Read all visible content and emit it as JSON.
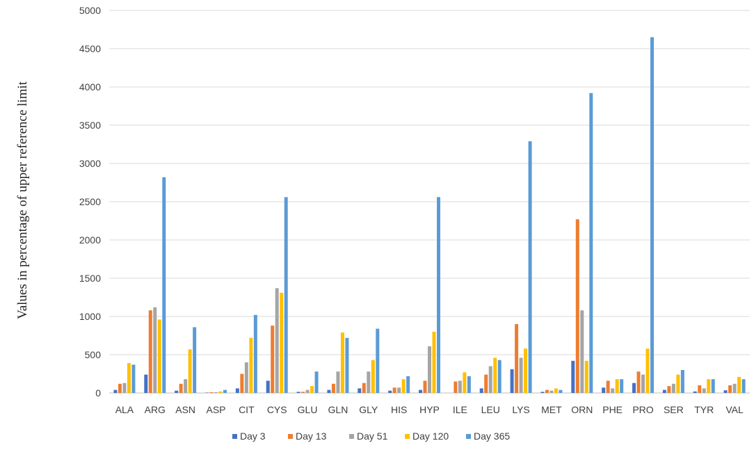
{
  "chart_data": {
    "type": "bar",
    "title": "",
    "xlabel": "",
    "ylabel": "Values in percentage of upper reference limit",
    "ylim": [
      0,
      5000
    ],
    "yticks": [
      0,
      500,
      1000,
      1500,
      2000,
      2500,
      3000,
      3500,
      4000,
      4500,
      5000
    ],
    "grid": true,
    "legend_position": "bottom",
    "categories": [
      "ALA",
      "ARG",
      "ASN",
      "ASP",
      "CIT",
      "CYS",
      "GLU",
      "GLN",
      "GLY",
      "HIS",
      "HYP",
      "ILE",
      "LEU",
      "LYS",
      "MET",
      "ORN",
      "PHE",
      "PRO",
      "SER",
      "TYR",
      "VAL"
    ],
    "series": [
      {
        "name": "Day 3",
        "color": "#4472C4",
        "values": [
          40,
          240,
          30,
          5,
          60,
          160,
          15,
          40,
          60,
          30,
          40,
          0,
          60,
          310,
          15,
          420,
          70,
          130,
          40,
          20,
          35
        ]
      },
      {
        "name": "Day 13",
        "color": "#ED7D31",
        "values": [
          120,
          1080,
          120,
          10,
          250,
          880,
          15,
          120,
          130,
          70,
          160,
          150,
          240,
          900,
          40,
          2270,
          160,
          280,
          90,
          100,
          100
        ]
      },
      {
        "name": "Day 51",
        "color": "#A5A5A5",
        "values": [
          130,
          1120,
          180,
          10,
          400,
          1370,
          40,
          280,
          280,
          70,
          610,
          160,
          350,
          460,
          30,
          1080,
          60,
          240,
          120,
          60,
          120
        ]
      },
      {
        "name": "Day 120",
        "color": "#FFC000",
        "values": [
          390,
          960,
          570,
          20,
          720,
          1310,
          90,
          790,
          430,
          180,
          800,
          270,
          460,
          580,
          60,
          420,
          180,
          580,
          240,
          180,
          210
        ]
      },
      {
        "name": "Day 365",
        "color": "#5B9BD5",
        "values": [
          370,
          2820,
          860,
          40,
          1020,
          2560,
          280,
          720,
          840,
          220,
          2560,
          220,
          430,
          3290,
          40,
          3920,
          180,
          4650,
          300,
          180,
          180
        ]
      }
    ]
  }
}
